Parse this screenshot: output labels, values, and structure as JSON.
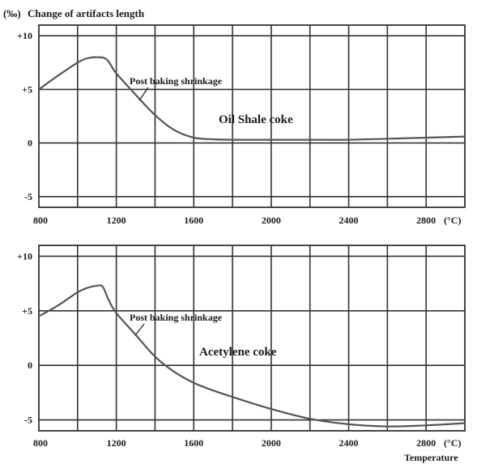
{
  "header": {
    "unit": "(‰)",
    "title": "Change of artifacts length"
  },
  "x_unit": "(°C)",
  "x_axis_title": "Temperature",
  "annotation_shrinkage": "Post baking shrinkage",
  "chart_data": [
    {
      "type": "line",
      "xlim": [
        800,
        3000
      ],
      "ylim": [
        -6,
        11
      ],
      "x_ticks": [
        800,
        1200,
        1600,
        2000,
        2400,
        2800
      ],
      "x_tick_labels": [
        "800",
        "1200",
        "1600",
        "2000",
        "2400",
        "2800"
      ],
      "y_ticks": [
        10,
        5,
        0,
        -5
      ],
      "y_tick_labels": [
        "+10",
        "+5",
        "0",
        "-5"
      ],
      "grid": true,
      "series": [
        {
          "name": "Oil Shale coke",
          "x": [
            800,
            900,
            1000,
            1050,
            1100,
            1150,
            1200,
            1300,
            1400,
            1500,
            1600,
            1700,
            1800,
            1900,
            2000,
            2200,
            2400,
            2600,
            2800,
            3000
          ],
          "y": [
            5.0,
            6.3,
            7.5,
            7.9,
            8.0,
            7.8,
            6.5,
            4.5,
            2.6,
            1.2,
            0.5,
            0.35,
            0.3,
            0.3,
            0.3,
            0.3,
            0.3,
            0.4,
            0.5,
            0.6
          ]
        }
      ]
    },
    {
      "type": "line",
      "xlim": [
        800,
        3000
      ],
      "ylim": [
        -6,
        11
      ],
      "x_ticks": [
        800,
        1200,
        1600,
        2000,
        2400,
        2800
      ],
      "x_tick_labels": [
        "800",
        "1200",
        "1600",
        "2000",
        "2400",
        "2800"
      ],
      "y_ticks": [
        10,
        5,
        0,
        -5
      ],
      "y_tick_labels": [
        "+10",
        "+5",
        "0",
        "-5"
      ],
      "grid": true,
      "series": [
        {
          "name": "Acetylene coke",
          "x": [
            800,
            900,
            1000,
            1050,
            1100,
            1130,
            1160,
            1200,
            1300,
            1400,
            1500,
            1600,
            1700,
            1800,
            2000,
            2200,
            2400,
            2600,
            2800,
            3000
          ],
          "y": [
            4.5,
            5.5,
            6.7,
            7.1,
            7.3,
            7.2,
            6.0,
            4.8,
            2.8,
            0.8,
            -0.6,
            -1.6,
            -2.3,
            -2.9,
            -4.0,
            -4.9,
            -5.4,
            -5.6,
            -5.5,
            -5.3
          ]
        }
      ]
    }
  ]
}
